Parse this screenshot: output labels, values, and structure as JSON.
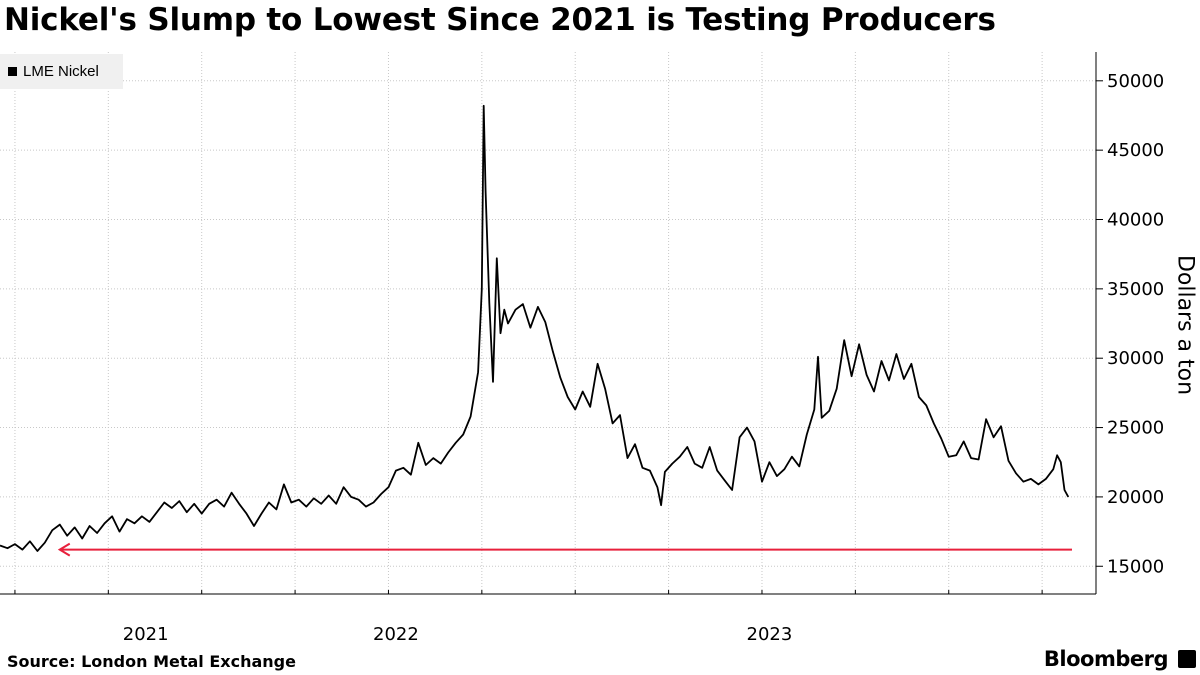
{
  "title": "Nickel's Slump to Lowest Since 2021 is Testing Producers",
  "legend": {
    "label": "LME Nickel"
  },
  "source": "Source: London Metal Exchange",
  "brand": "Bloomberg",
  "colors": {
    "line": "#000000",
    "arrow": "#e8203c",
    "grid": "#c8c8c8",
    "legend_bg": "#f0f0f0"
  },
  "chart_data": {
    "type": "line",
    "title": "Nickel's Slump to Lowest Since 2021 is Testing Producers",
    "ylabel": "Dollars a ton",
    "xlabel": "",
    "ylim": [
      13000,
      51500
    ],
    "xlim": [
      2020.96,
      2023.83
    ],
    "yticks": [
      15000,
      20000,
      25000,
      30000,
      35000,
      40000,
      45000,
      50000
    ],
    "year_labels": [
      {
        "label": "2021",
        "x": 2021.35
      },
      {
        "label": "2022",
        "x": 2022.02
      },
      {
        "label": "2023",
        "x": 2023.02
      }
    ],
    "grid": true,
    "series": [
      {
        "name": "LME Nickel",
        "points": [
          [
            2020.96,
            16500
          ],
          [
            2020.98,
            16300
          ],
          [
            2021.0,
            16600
          ],
          [
            2021.02,
            16200
          ],
          [
            2021.04,
            16800
          ],
          [
            2021.06,
            16100
          ],
          [
            2021.08,
            16700
          ],
          [
            2021.1,
            17600
          ],
          [
            2021.12,
            18000
          ],
          [
            2021.14,
            17200
          ],
          [
            2021.16,
            17800
          ],
          [
            2021.18,
            17000
          ],
          [
            2021.2,
            17900
          ],
          [
            2021.22,
            17400
          ],
          [
            2021.24,
            18100
          ],
          [
            2021.26,
            18600
          ],
          [
            2021.28,
            17500
          ],
          [
            2021.3,
            18400
          ],
          [
            2021.32,
            18100
          ],
          [
            2021.34,
            18600
          ],
          [
            2021.36,
            18200
          ],
          [
            2021.38,
            18900
          ],
          [
            2021.4,
            19600
          ],
          [
            2021.42,
            19200
          ],
          [
            2021.44,
            19700
          ],
          [
            2021.46,
            18900
          ],
          [
            2021.48,
            19500
          ],
          [
            2021.5,
            18800
          ],
          [
            2021.52,
            19500
          ],
          [
            2021.54,
            19800
          ],
          [
            2021.56,
            19300
          ],
          [
            2021.58,
            20300
          ],
          [
            2021.6,
            19500
          ],
          [
            2021.62,
            18800
          ],
          [
            2021.64,
            17900
          ],
          [
            2021.66,
            18800
          ],
          [
            2021.68,
            19600
          ],
          [
            2021.7,
            19100
          ],
          [
            2021.72,
            20900
          ],
          [
            2021.74,
            19600
          ],
          [
            2021.76,
            19800
          ],
          [
            2021.78,
            19300
          ],
          [
            2021.8,
            19900
          ],
          [
            2021.82,
            19500
          ],
          [
            2021.84,
            20100
          ],
          [
            2021.86,
            19500
          ],
          [
            2021.88,
            20700
          ],
          [
            2021.9,
            20000
          ],
          [
            2021.92,
            19800
          ],
          [
            2021.94,
            19300
          ],
          [
            2021.96,
            19600
          ],
          [
            2021.98,
            20200
          ],
          [
            2022.0,
            20700
          ],
          [
            2022.02,
            21900
          ],
          [
            2022.04,
            22100
          ],
          [
            2022.06,
            21600
          ],
          [
            2022.08,
            23900
          ],
          [
            2022.1,
            22300
          ],
          [
            2022.12,
            22800
          ],
          [
            2022.14,
            22400
          ],
          [
            2022.16,
            23200
          ],
          [
            2022.18,
            23900
          ],
          [
            2022.2,
            24500
          ],
          [
            2022.22,
            25800
          ],
          [
            2022.24,
            29000
          ],
          [
            2022.25,
            35000
          ],
          [
            2022.255,
            48200
          ],
          [
            2022.26,
            42000
          ],
          [
            2022.27,
            34000
          ],
          [
            2022.28,
            28300
          ],
          [
            2022.29,
            37200
          ],
          [
            2022.3,
            31800
          ],
          [
            2022.31,
            33500
          ],
          [
            2022.32,
            32500
          ],
          [
            2022.34,
            33500
          ],
          [
            2022.36,
            33900
          ],
          [
            2022.38,
            32200
          ],
          [
            2022.4,
            33700
          ],
          [
            2022.42,
            32600
          ],
          [
            2022.44,
            30500
          ],
          [
            2022.46,
            28600
          ],
          [
            2022.48,
            27200
          ],
          [
            2022.5,
            26300
          ],
          [
            2022.52,
            27600
          ],
          [
            2022.54,
            26500
          ],
          [
            2022.56,
            29600
          ],
          [
            2022.58,
            27800
          ],
          [
            2022.6,
            25300
          ],
          [
            2022.62,
            25900
          ],
          [
            2022.64,
            22800
          ],
          [
            2022.66,
            23800
          ],
          [
            2022.68,
            22100
          ],
          [
            2022.7,
            21900
          ],
          [
            2022.72,
            20700
          ],
          [
            2022.73,
            19400
          ],
          [
            2022.74,
            21800
          ],
          [
            2022.76,
            22400
          ],
          [
            2022.78,
            22900
          ],
          [
            2022.8,
            23600
          ],
          [
            2022.82,
            22400
          ],
          [
            2022.84,
            22100
          ],
          [
            2022.86,
            23600
          ],
          [
            2022.88,
            21900
          ],
          [
            2022.9,
            21200
          ],
          [
            2022.92,
            20500
          ],
          [
            2022.94,
            24300
          ],
          [
            2022.96,
            25000
          ],
          [
            2022.98,
            24000
          ],
          [
            2023.0,
            21100
          ],
          [
            2023.02,
            22500
          ],
          [
            2023.04,
            21500
          ],
          [
            2023.06,
            22000
          ],
          [
            2023.08,
            22900
          ],
          [
            2023.1,
            22200
          ],
          [
            2023.12,
            24500
          ],
          [
            2023.14,
            26300
          ],
          [
            2023.15,
            30100
          ],
          [
            2023.16,
            25700
          ],
          [
            2023.18,
            26200
          ],
          [
            2023.2,
            27800
          ],
          [
            2023.22,
            31300
          ],
          [
            2023.24,
            28700
          ],
          [
            2023.26,
            31000
          ],
          [
            2023.28,
            28800
          ],
          [
            2023.3,
            27600
          ],
          [
            2023.32,
            29800
          ],
          [
            2023.34,
            28400
          ],
          [
            2023.36,
            30300
          ],
          [
            2023.38,
            28500
          ],
          [
            2023.4,
            29600
          ],
          [
            2023.42,
            27200
          ],
          [
            2023.44,
            26600
          ],
          [
            2023.46,
            25300
          ],
          [
            2023.48,
            24200
          ],
          [
            2023.5,
            22900
          ],
          [
            2023.52,
            23000
          ],
          [
            2023.54,
            24000
          ],
          [
            2023.56,
            22800
          ],
          [
            2023.58,
            22700
          ],
          [
            2023.6,
            25600
          ],
          [
            2023.62,
            24300
          ],
          [
            2023.64,
            25100
          ],
          [
            2023.66,
            22600
          ],
          [
            2023.68,
            21700
          ],
          [
            2023.7,
            21100
          ],
          [
            2023.72,
            21300
          ],
          [
            2023.74,
            20900
          ],
          [
            2023.76,
            21300
          ],
          [
            2023.78,
            22000
          ],
          [
            2023.79,
            23000
          ],
          [
            2023.8,
            22500
          ],
          [
            2023.81,
            20500
          ],
          [
            2023.82,
            20000
          ]
        ]
      }
    ],
    "annotations": [
      {
        "type": "arrow",
        "label": "",
        "from_x": 2023.83,
        "to_x": 2021.12,
        "y": 16200,
        "color": "#e8203c"
      }
    ]
  }
}
